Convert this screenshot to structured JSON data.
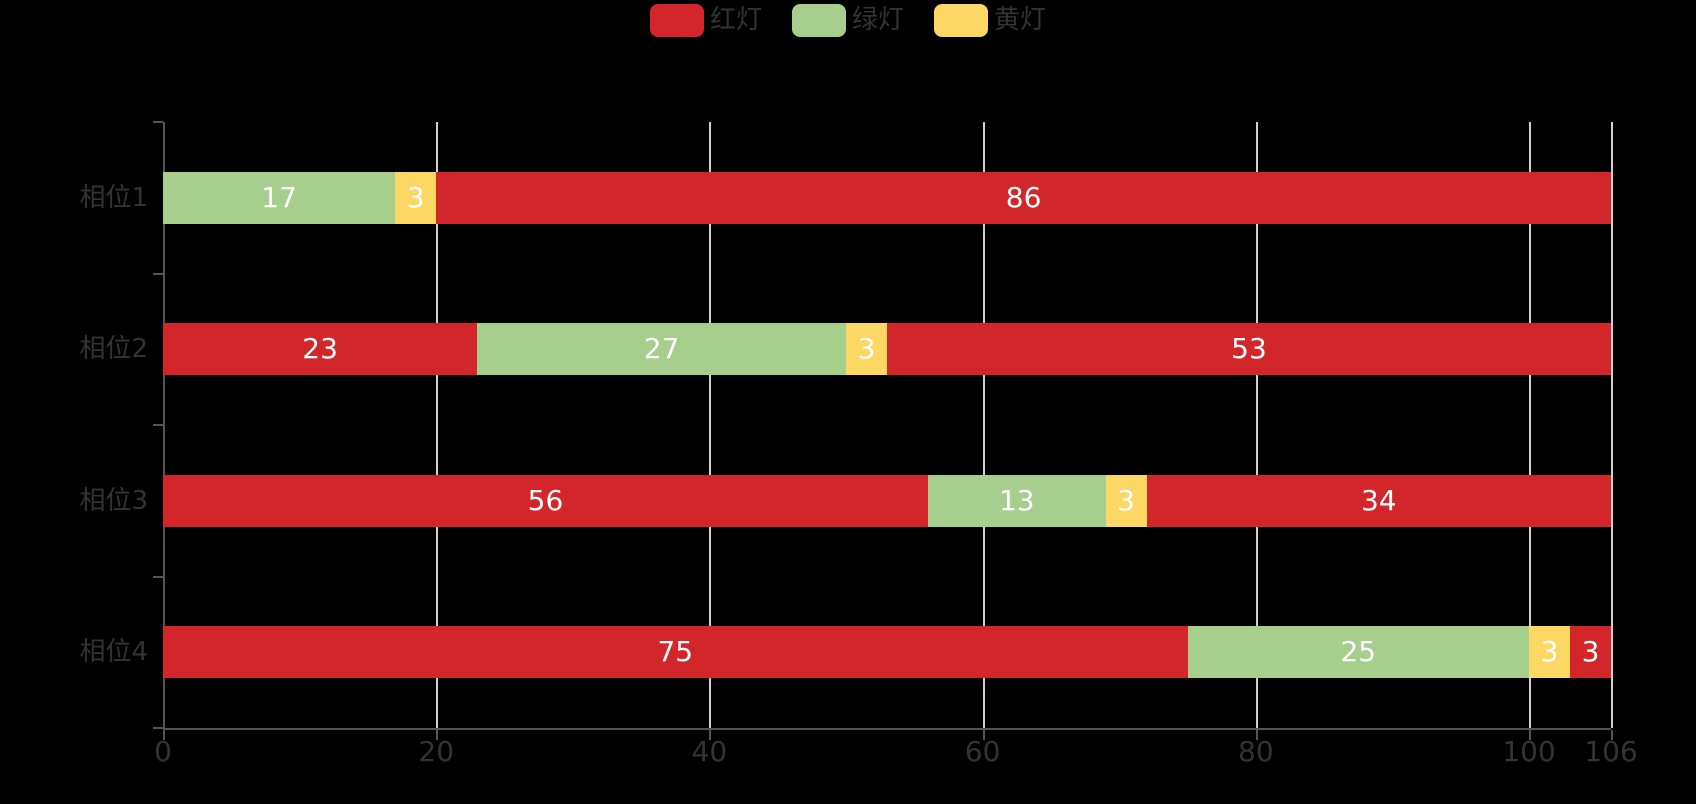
{
  "legend": {
    "items": [
      {
        "label": "红灯",
        "color": "#d2262a"
      },
      {
        "label": "绿灯",
        "color": "#a6ce8d"
      },
      {
        "label": "黄灯",
        "color": "#fcd763"
      }
    ]
  },
  "chart_data": {
    "type": "bar",
    "orientation": "horizontal",
    "stacked": true,
    "title": "",
    "xlabel": "",
    "ylabel": "",
    "grid": true,
    "legend_position": "top-center",
    "xlim": [
      0,
      106
    ],
    "x_ticks": [
      "0",
      "20",
      "40",
      "60",
      "80",
      "100",
      "106"
    ],
    "x_tick_values": [
      0,
      20,
      40,
      60,
      80,
      100,
      106
    ],
    "categories": [
      "相位1",
      "相位2",
      "相位3",
      "相位4"
    ],
    "series_colors": {
      "红灯": "#d2262a",
      "绿灯": "#a6ce8d",
      "黄灯": "#fcd763"
    },
    "rows": [
      {
        "category": "相位1",
        "segments": [
          {
            "series": "绿灯",
            "value": 17
          },
          {
            "series": "黄灯",
            "value": 3
          },
          {
            "series": "红灯",
            "value": 86
          }
        ]
      },
      {
        "category": "相位2",
        "segments": [
          {
            "series": "红灯",
            "value": 23
          },
          {
            "series": "绿灯",
            "value": 27
          },
          {
            "series": "黄灯",
            "value": 3
          },
          {
            "series": "红灯",
            "value": 53
          }
        ]
      },
      {
        "category": "相位3",
        "segments": [
          {
            "series": "红灯",
            "value": 56
          },
          {
            "series": "绿灯",
            "value": 13
          },
          {
            "series": "黄灯",
            "value": 3
          },
          {
            "series": "红灯",
            "value": 34
          }
        ]
      },
      {
        "category": "相位4",
        "segments": [
          {
            "series": "红灯",
            "value": 75
          },
          {
            "series": "绿灯",
            "value": 25
          },
          {
            "series": "黄灯",
            "value": 3
          },
          {
            "series": "红灯",
            "value": 3
          }
        ]
      }
    ],
    "row_totals": [
      106,
      106,
      106,
      106
    ]
  }
}
